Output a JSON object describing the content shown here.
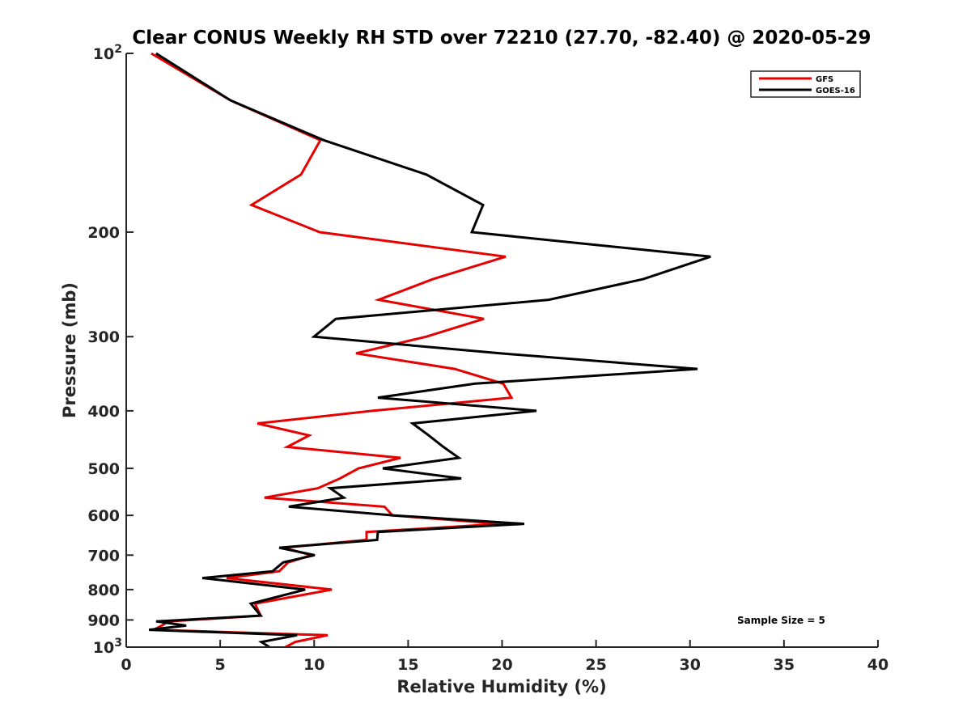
{
  "chart_data": {
    "type": "line",
    "title": "Clear CONUS Weekly RH STD over 72210 (27.70, -82.40) @ 2020-05-29",
    "xlabel": "Relative Humidity (%)",
    "ylabel": "Pressure (mb)",
    "xlim": [
      0,
      40
    ],
    "ylim": [
      1000,
      100
    ],
    "yscale": "log",
    "y_reversed": true,
    "grid": false,
    "xticks": [
      0,
      5,
      10,
      15,
      20,
      25,
      30,
      35,
      40
    ],
    "xtick_labels": [
      "0",
      "5",
      "10",
      "15",
      "20",
      "25",
      "30",
      "35",
      "40"
    ],
    "yticks": [
      100,
      200,
      300,
      400,
      500,
      600,
      700,
      800,
      900,
      1000
    ],
    "ytick_labels": [
      "10",
      "200",
      "300",
      "400",
      "500",
      "600",
      "700",
      "800",
      "900",
      "10"
    ],
    "ytick_superscripts": {
      "100": "2",
      "1000": "3"
    },
    "legend": {
      "placement": "top-right",
      "entries": [
        "GFS",
        "GOES-16"
      ]
    },
    "annotation": "Sample Size = 5",
    "pressure": [
      100,
      120,
      140,
      160,
      180,
      200,
      220,
      240,
      260,
      280,
      300,
      320,
      340,
      360,
      380,
      400,
      420,
      440,
      460,
      480,
      500,
      520,
      540,
      560,
      580,
      600,
      620,
      640,
      660,
      680,
      700,
      720,
      745,
      765,
      800,
      845,
      885,
      905,
      920,
      935,
      955,
      980,
      1000
    ],
    "series": [
      {
        "name": "GFS",
        "color": "#e60000",
        "values": [
          1.33,
          5.55,
          10.33,
          9.3,
          6.67,
          10.29,
          20.19,
          16.32,
          13.43,
          19.03,
          15.97,
          12.23,
          17.48,
          20.06,
          20.5,
          13.09,
          6.98,
          9.73,
          8.57,
          14.6,
          12.36,
          11.37,
          10.2,
          7.36,
          13.74,
          14.17,
          19.98,
          12.79,
          12.79,
          8.35,
          9.86,
          8.61,
          8.14,
          5.34,
          10.94,
          6.85,
          7.15,
          2.24,
          1.89,
          1.46,
          10.72,
          9.0,
          8.48
        ]
      },
      {
        "name": "GOES-16",
        "color": "#000000",
        "values": [
          1.59,
          5.55,
          10.51,
          15.97,
          18.99,
          18.39,
          31.09,
          27.51,
          22.48,
          11.15,
          9.99,
          19.89,
          30.4,
          18.56,
          13.39,
          21.83,
          15.24,
          16.1,
          16.88,
          17.7,
          13.65,
          17.83,
          10.85,
          11.58,
          8.65,
          14.25,
          21.18,
          13.39,
          13.35,
          8.14,
          10.03,
          8.35,
          7.79,
          4.05,
          9.52,
          6.63,
          7.15,
          1.59,
          3.19,
          1.21,
          9.09,
          7.19,
          7.62
        ]
      }
    ]
  }
}
